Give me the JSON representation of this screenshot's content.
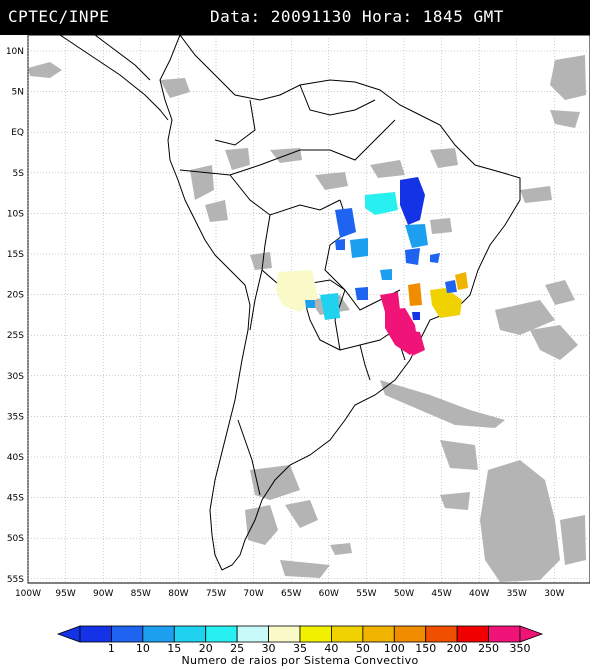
{
  "header": {
    "source": "CPTEC/INPE",
    "datetime": "Data: 20091130 Hora: 1845 GMT"
  },
  "map": {
    "lat_labels": [
      "10N",
      "5N",
      "EQ",
      "5S",
      "10S",
      "15S",
      "20S",
      "25S",
      "30S",
      "35S",
      "40S",
      "45S",
      "50S",
      "55S"
    ],
    "lon_labels": [
      "100W",
      "95W",
      "90W",
      "85W",
      "80W",
      "75W",
      "70W",
      "65W",
      "60W",
      "55W",
      "50W",
      "45W",
      "40W",
      "35W",
      "30W"
    ],
    "colors": {
      "cloud": "#b4b4b4",
      "coast": "#000000",
      "grid": "#9a9a9a"
    }
  },
  "colorbar": {
    "ticks": [
      "1",
      "10",
      "15",
      "20",
      "25",
      "30",
      "35",
      "40",
      "50",
      "100",
      "150",
      "200",
      "250",
      "350"
    ],
    "colors": [
      "#1432e6",
      "#1e64f0",
      "#1ea0f0",
      "#1ed2f0",
      "#28f0f0",
      "#c8fafa",
      "#fafac8",
      "#f0f000",
      "#f0d200",
      "#f0b400",
      "#f08c00",
      "#f05000",
      "#f00000",
      "#f01478"
    ],
    "title": "Numero de raios por Sistema Convectivo"
  }
}
